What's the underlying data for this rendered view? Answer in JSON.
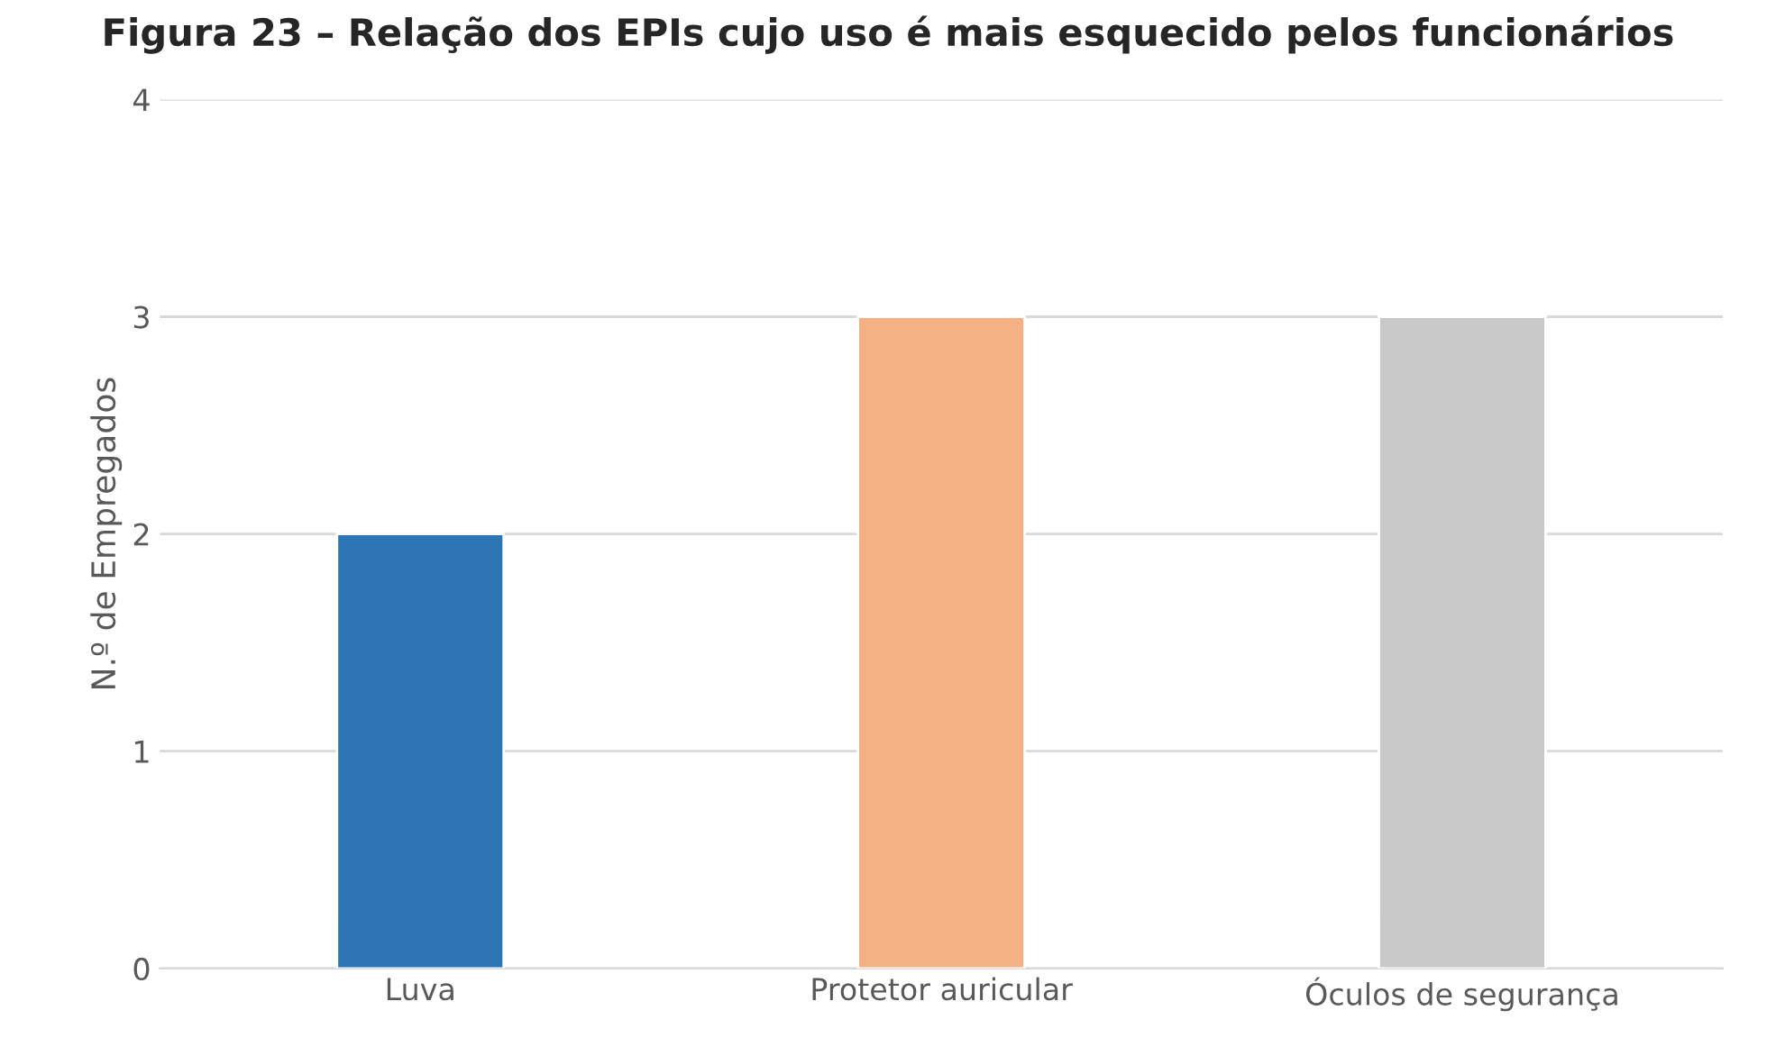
{
  "chart_data": {
    "type": "bar",
    "title": "Figura 23 – Relação dos EPIs cujo uso é mais esquecido pelos funcionários",
    "ylabel": "N.º de Empregados",
    "categories": [
      "Luva",
      "Protetor auricular",
      "Óculos de segurança"
    ],
    "values": [
      2,
      3,
      3
    ],
    "colors": [
      "#2e75b6",
      "#f4b183",
      "#c9c9c9"
    ],
    "ylim": [
      0,
      4
    ],
    "yticks": [
      0,
      1,
      2,
      3,
      4
    ],
    "grid": "y"
  }
}
